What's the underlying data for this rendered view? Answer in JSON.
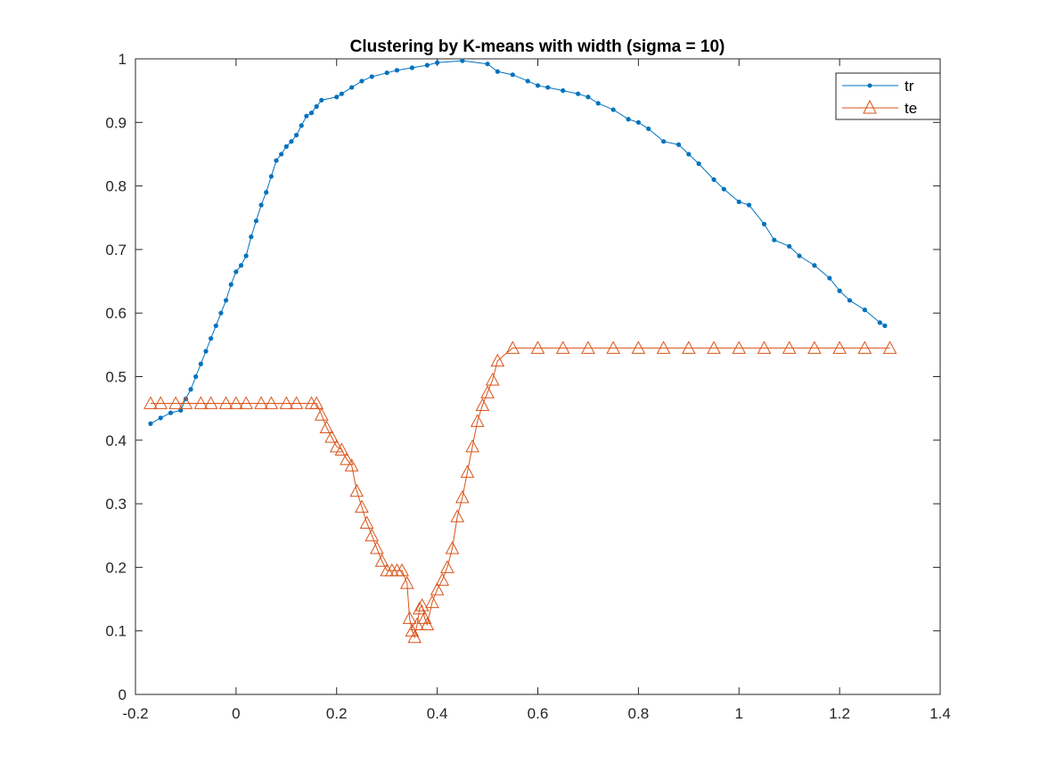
{
  "chart_data": {
    "type": "line",
    "title": "Clustering by K-means with width (sigma = 10)",
    "xlabel": "",
    "ylabel": "",
    "xlim": [
      -0.2,
      1.4
    ],
    "ylim": [
      0,
      1
    ],
    "xticks": [
      -0.2,
      0,
      0.2,
      0.4,
      0.6,
      0.8,
      1,
      1.2,
      1.4
    ],
    "xtick_labels": [
      "-0.2",
      "0",
      "0.2",
      "0.4",
      "0.6",
      "0.8",
      "1",
      "1.2",
      "1.4"
    ],
    "yticks": [
      0,
      0.1,
      0.2,
      0.3,
      0.4,
      0.5,
      0.6,
      0.7,
      0.8,
      0.9,
      1
    ],
    "ytick_labels": [
      "0",
      "0.1",
      "0.2",
      "0.3",
      "0.4",
      "0.5",
      "0.6",
      "0.7",
      "0.8",
      "0.9",
      "1"
    ],
    "grid": false,
    "box": true,
    "legend": {
      "location": "top-right",
      "entries": [
        "tr",
        "te"
      ]
    },
    "series": [
      {
        "name": "tr",
        "color": "#0072BD",
        "marker": "dot",
        "x": [
          -0.17,
          -0.15,
          -0.13,
          -0.11,
          -0.1,
          -0.09,
          -0.08,
          -0.07,
          -0.06,
          -0.05,
          -0.04,
          -0.03,
          -0.02,
          -0.01,
          0.0,
          0.01,
          0.02,
          0.03,
          0.04,
          0.05,
          0.06,
          0.07,
          0.08,
          0.09,
          0.1,
          0.11,
          0.12,
          0.13,
          0.14,
          0.15,
          0.16,
          0.17,
          0.2,
          0.21,
          0.23,
          0.25,
          0.27,
          0.3,
          0.32,
          0.35,
          0.38,
          0.4,
          0.45,
          0.5,
          0.52,
          0.55,
          0.58,
          0.6,
          0.62,
          0.65,
          0.68,
          0.7,
          0.72,
          0.75,
          0.78,
          0.8,
          0.82,
          0.85,
          0.88,
          0.9,
          0.92,
          0.95,
          0.97,
          1.0,
          1.02,
          1.05,
          1.07,
          1.1,
          1.12,
          1.15,
          1.18,
          1.2,
          1.22,
          1.25,
          1.28,
          1.29
        ],
        "y": [
          0.426,
          0.435,
          0.443,
          0.447,
          0.465,
          0.48,
          0.5,
          0.52,
          0.54,
          0.56,
          0.58,
          0.6,
          0.62,
          0.645,
          0.665,
          0.675,
          0.69,
          0.72,
          0.745,
          0.77,
          0.79,
          0.815,
          0.84,
          0.85,
          0.862,
          0.87,
          0.88,
          0.895,
          0.91,
          0.915,
          0.925,
          0.935,
          0.94,
          0.945,
          0.955,
          0.965,
          0.972,
          0.978,
          0.982,
          0.986,
          0.99,
          0.994,
          0.997,
          0.992,
          0.98,
          0.975,
          0.965,
          0.958,
          0.955,
          0.95,
          0.945,
          0.94,
          0.93,
          0.92,
          0.905,
          0.9,
          0.89,
          0.87,
          0.865,
          0.85,
          0.835,
          0.81,
          0.795,
          0.775,
          0.77,
          0.74,
          0.715,
          0.705,
          0.69,
          0.675,
          0.655,
          0.635,
          0.62,
          0.605,
          0.585,
          0.58
        ]
      },
      {
        "name": "te",
        "color": "#D95319",
        "marker": "triangle",
        "x": [
          -0.17,
          -0.15,
          -0.12,
          -0.1,
          -0.07,
          -0.05,
          -0.02,
          0.0,
          0.02,
          0.05,
          0.07,
          0.1,
          0.12,
          0.15,
          0.16,
          0.17,
          0.18,
          0.19,
          0.2,
          0.21,
          0.22,
          0.23,
          0.24,
          0.25,
          0.26,
          0.27,
          0.28,
          0.29,
          0.3,
          0.31,
          0.32,
          0.33,
          0.34,
          0.345,
          0.35,
          0.355,
          0.36,
          0.365,
          0.37,
          0.375,
          0.38,
          0.39,
          0.4,
          0.41,
          0.42,
          0.43,
          0.44,
          0.45,
          0.46,
          0.47,
          0.48,
          0.49,
          0.5,
          0.51,
          0.52,
          0.55,
          0.6,
          0.65,
          0.7,
          0.75,
          0.8,
          0.85,
          0.9,
          0.95,
          1.0,
          1.05,
          1.1,
          1.15,
          1.2,
          1.25,
          1.3
        ],
        "y": [
          0.458,
          0.458,
          0.458,
          0.458,
          0.458,
          0.458,
          0.458,
          0.458,
          0.458,
          0.458,
          0.458,
          0.458,
          0.458,
          0.458,
          0.458,
          0.44,
          0.42,
          0.405,
          0.39,
          0.385,
          0.37,
          0.36,
          0.32,
          0.295,
          0.27,
          0.25,
          0.23,
          0.21,
          0.195,
          0.195,
          0.195,
          0.195,
          0.175,
          0.12,
          0.1,
          0.09,
          0.11,
          0.135,
          0.14,
          0.12,
          0.11,
          0.145,
          0.165,
          0.18,
          0.2,
          0.23,
          0.28,
          0.31,
          0.35,
          0.39,
          0.43,
          0.455,
          0.475,
          0.495,
          0.525,
          0.545,
          0.545,
          0.545,
          0.545,
          0.545,
          0.545,
          0.545,
          0.545,
          0.545,
          0.545,
          0.545,
          0.545,
          0.545,
          0.545,
          0.545,
          0.545
        ]
      }
    ]
  }
}
